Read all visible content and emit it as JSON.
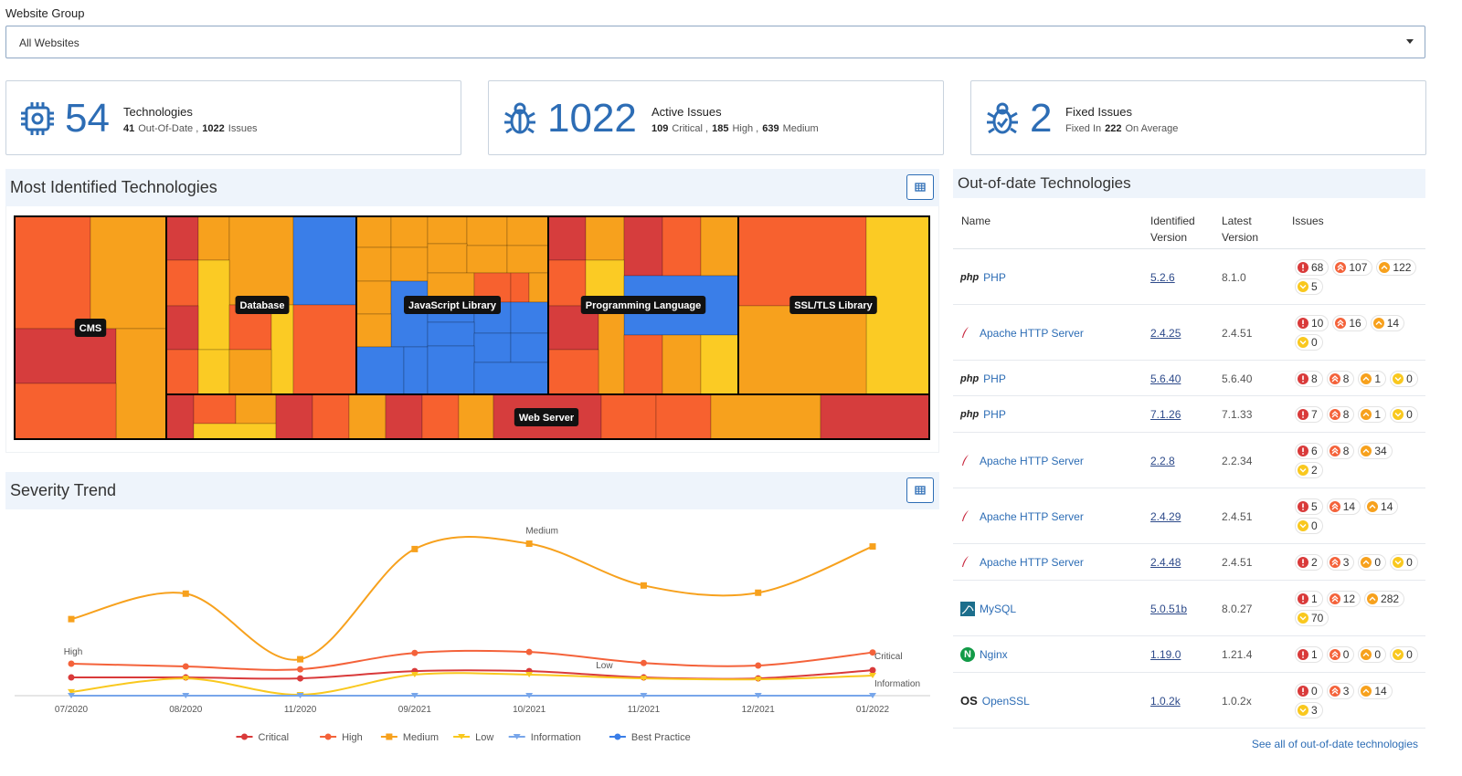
{
  "website_group": {
    "label": "Website Group",
    "selected": "All Websites"
  },
  "stats": [
    {
      "value": 54,
      "title": "Technologies",
      "icon": "chip",
      "detail": [
        {
          "text": "41",
          "bold": true
        },
        {
          "text": "Out-Of-Date ,"
        },
        {
          "text": "1022",
          "bold": true
        },
        {
          "text": "Issues"
        }
      ]
    },
    {
      "value": 1022,
      "title": "Active Issues",
      "icon": "bug",
      "detail": [
        {
          "text": "109",
          "bold": true
        },
        {
          "text": "Critical ,"
        },
        {
          "text": "185",
          "bold": true
        },
        {
          "text": "High ,"
        },
        {
          "text": "639",
          "bold": true
        },
        {
          "text": "Medium"
        }
      ]
    },
    {
      "value": 2,
      "title": "Fixed Issues",
      "icon": "bug-check",
      "detail": [
        {
          "text": "Fixed In"
        },
        {
          "text": "222",
          "bold": true
        },
        {
          "text": "On Average"
        }
      ]
    }
  ],
  "treemap": {
    "title": "Most Identified Technologies",
    "groups": [
      "CMS",
      "Database",
      "JavaScript Library",
      "Programming Language",
      "SSL/TLS Library",
      "Web Server"
    ]
  },
  "chart_data": {
    "type": "line",
    "title": "Severity Trend",
    "categories": [
      "07/2020",
      "08/2020",
      "11/2020",
      "09/2021",
      "10/2021",
      "11/2021",
      "12/2021",
      "01/2022"
    ],
    "ylim": [
      0,
      700
    ],
    "series": [
      {
        "name": "Critical",
        "color": "#d93a3a",
        "marker": "circle",
        "values": [
          78,
          78,
          74,
          105,
          105,
          78,
          74,
          109
        ]
      },
      {
        "name": "High",
        "color": "#f4623a",
        "marker": "circle",
        "values": [
          137,
          125,
          113,
          183,
          187,
          140,
          129,
          185
        ]
      },
      {
        "name": "Medium",
        "color": "#f7a11d",
        "marker": "square",
        "values": [
          328,
          437,
          156,
          628,
          651,
          472,
          441,
          639
        ]
      },
      {
        "name": "Low",
        "color": "#f9c81e",
        "marker": "triangle",
        "values": [
          16,
          74,
          4,
          90,
          90,
          74,
          70,
          86
        ]
      },
      {
        "name": "Information",
        "color": "#78a6ea",
        "marker": "triangle",
        "values": [
          0,
          0,
          0,
          0,
          0,
          0,
          0,
          0
        ]
      },
      {
        "name": "Best Practice",
        "color": "#3a7ee8",
        "marker": "circle",
        "values": [
          null,
          null,
          null,
          null,
          null,
          null,
          null,
          null
        ]
      }
    ]
  },
  "out_of_date": {
    "title": "Out-of-date Technologies",
    "columns": [
      "Name",
      "Identified Version",
      "Latest Version",
      "Issues"
    ],
    "rows": [
      {
        "icon": "php",
        "name": "PHP",
        "identified": "5.2.6",
        "latest": "8.1.0",
        "issues": [
          68,
          107,
          122,
          5
        ]
      },
      {
        "icon": "feather",
        "name": "Apache HTTP Server",
        "identified": "2.4.25",
        "latest": "2.4.51",
        "issues": [
          10,
          16,
          14,
          0
        ]
      },
      {
        "icon": "php",
        "name": "PHP",
        "identified": "5.6.40",
        "latest": "5.6.40",
        "issues": [
          8,
          8,
          1,
          0
        ]
      },
      {
        "icon": "php",
        "name": "PHP",
        "identified": "7.1.26",
        "latest": "7.1.33",
        "issues": [
          7,
          8,
          1,
          0
        ]
      },
      {
        "icon": "feather",
        "name": "Apache HTTP Server",
        "identified": "2.2.8",
        "latest": "2.2.34",
        "issues": [
          6,
          8,
          34,
          2
        ]
      },
      {
        "icon": "feather",
        "name": "Apache HTTP Server",
        "identified": "2.4.29",
        "latest": "2.4.51",
        "issues": [
          5,
          14,
          14,
          0
        ]
      },
      {
        "icon": "feather",
        "name": "Apache HTTP Server",
        "identified": "2.4.48",
        "latest": "2.4.51",
        "issues": [
          2,
          3,
          0,
          0
        ]
      },
      {
        "icon": "mysql",
        "name": "MySQL",
        "identified": "5.0.51b",
        "latest": "8.0.27",
        "issues": [
          1,
          12,
          282,
          70
        ]
      },
      {
        "icon": "N",
        "name": "Nginx",
        "identified": "1.19.0",
        "latest": "1.21.4",
        "issues": [
          1,
          0,
          0,
          0
        ]
      },
      {
        "icon": "OS",
        "name": "OpenSSL",
        "identified": "1.0.2k",
        "latest": "1.0.2x",
        "issues": [
          0,
          3,
          14,
          3
        ]
      }
    ],
    "footer_link": "See all of out-of-date technologies"
  }
}
